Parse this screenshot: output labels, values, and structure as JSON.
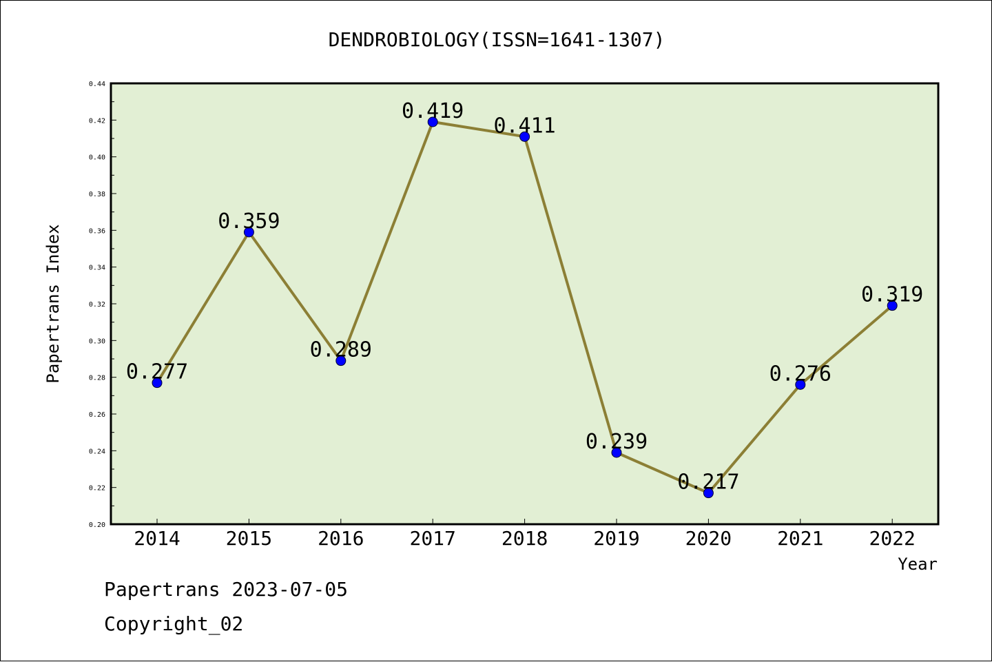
{
  "chart_data": {
    "type": "line",
    "title": "DENDROBIOLOGY(ISSN=1641-1307)",
    "xlabel": "Year",
    "ylabel": "Papertrans Index",
    "x": [
      "2014",
      "2015",
      "2016",
      "2017",
      "2018",
      "2019",
      "2020",
      "2021",
      "2022"
    ],
    "values": [
      0.277,
      0.359,
      0.289,
      0.419,
      0.411,
      0.239,
      0.217,
      0.276,
      0.319
    ],
    "data_labels": [
      "0.277",
      "0.359",
      "0.289",
      "0.419",
      "0.411",
      "0.239",
      "0.217",
      "0.276",
      "0.319"
    ],
    "ylim": [
      0.2,
      0.44
    ],
    "yticks": [
      "0.20",
      "0.22",
      "0.24",
      "0.26",
      "0.28",
      "0.30",
      "0.32",
      "0.34",
      "0.36",
      "0.38",
      "0.40",
      "0.42",
      "0.44"
    ],
    "grid": false,
    "colors": {
      "plot_background": "#e2efd4",
      "line": "#8c7f35",
      "marker": "#0000ff"
    }
  },
  "footer": {
    "line1": "Papertrans 2023-07-05",
    "line2": "Copyright_02"
  }
}
